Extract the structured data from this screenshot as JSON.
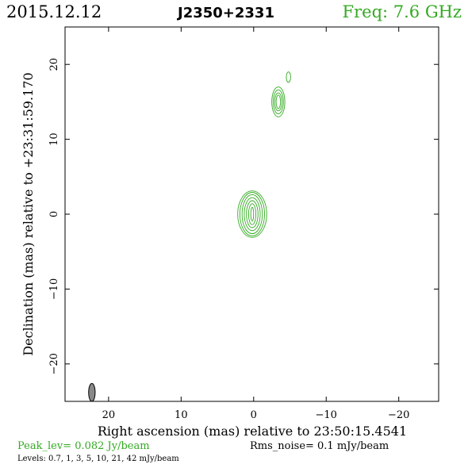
{
  "header": {
    "date": "2015.12.12",
    "source": "J2350+2331",
    "freq": "Freq: 7.6 GHz"
  },
  "axes": {
    "xlabel": "Right ascension (mas) relative to 23:50:15.4541",
    "ylabel": "Declination (mas) relative to +23:31:59.170"
  },
  "footer": {
    "peak": "Peak_lev=  0.082 Jy/beam",
    "rms": "Rms_noise=   0.1 mJy/beam",
    "levels": "Levels: 0.7,    1,    3,    5,   10,   21,   42 mJy/beam"
  },
  "colors": {
    "contour": "#33aa22",
    "text": "#000000",
    "beam": "#888888"
  },
  "chart_data": {
    "type": "contour",
    "xlim": [
      26,
      -25.5
    ],
    "ylim": [
      -25,
      25
    ],
    "x_ticks": [
      20,
      10,
      0,
      -10,
      -20
    ],
    "x_tick_labels": [
      "20",
      "10",
      "0",
      "−10",
      "−20"
    ],
    "y_ticks": [
      20,
      10,
      0,
      -10,
      -20
    ],
    "y_tick_labels": [
      "20",
      "10",
      "0",
      "−10",
      "−20"
    ],
    "components": [
      {
        "x": 0.2,
        "y": 0.0,
        "rx": [
          0.2,
          0.5,
          0.8,
          1.1,
          1.4,
          1.7,
          2.0
        ],
        "ry": [
          0.9,
          1.4,
          1.8,
          2.2,
          2.6,
          2.9,
          3.1
        ]
      },
      {
        "x": -3.4,
        "y": 15.0,
        "rx": [
          0.3,
          0.5,
          0.7,
          0.9
        ],
        "ry": [
          0.9,
          1.2,
          1.6,
          2.0
        ]
      },
      {
        "x": -4.8,
        "y": 18.3,
        "rx": [
          0.3
        ],
        "ry": [
          0.7
        ]
      }
    ],
    "beam": {
      "x": 22.3,
      "y": -23.8,
      "major": 2.4,
      "minor": 0.9,
      "pa_deg": 0
    }
  }
}
